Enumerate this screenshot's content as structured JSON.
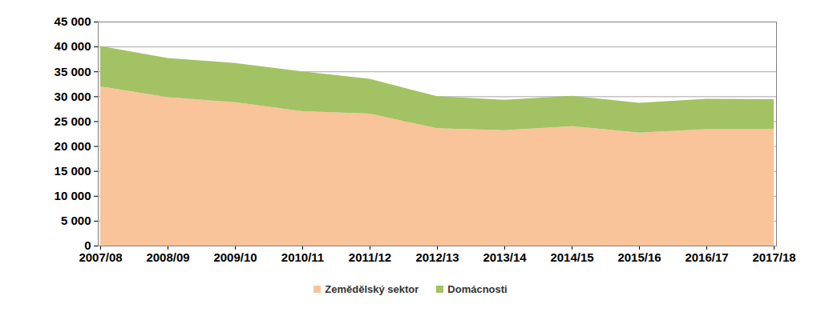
{
  "chart_data": {
    "type": "area",
    "stacked": true,
    "grid": true,
    "legend": "bottom",
    "categories": [
      "2007/08",
      "2008/09",
      "2009/10",
      "2010/11",
      "2011/12",
      "2012/13",
      "2013/14",
      "2014/15",
      "2015/16",
      "2016/17",
      "2017/18"
    ],
    "series": [
      {
        "name": "Zemědělský sektor",
        "color": "#f9c499",
        "values": [
          32000,
          29800,
          28800,
          27000,
          26500,
          23600,
          23200,
          24000,
          22700,
          23400,
          23400
        ]
      },
      {
        "name": "Domácnosti",
        "color": "#a3c264",
        "values": [
          8100,
          7900,
          7900,
          8000,
          7000,
          6400,
          6100,
          6100,
          6000,
          6100,
          6000
        ]
      }
    ],
    "ylim": [
      0,
      45000
    ],
    "yticks": [
      0,
      {
        "value": 5000,
        "label": "5 000"
      },
      {
        "value": 10000,
        "label": "10 000"
      },
      {
        "value": 15000,
        "label": "15 000"
      },
      {
        "value": 20000,
        "label": "20 000"
      },
      {
        "value": 25000,
        "label": "25 000"
      },
      {
        "value": 30000,
        "label": "30 000"
      },
      {
        "value": 35000,
        "label": "35 000"
      },
      {
        "value": 40000,
        "label": "40 000"
      },
      {
        "value": 45000,
        "label": "45 000"
      }
    ]
  }
}
